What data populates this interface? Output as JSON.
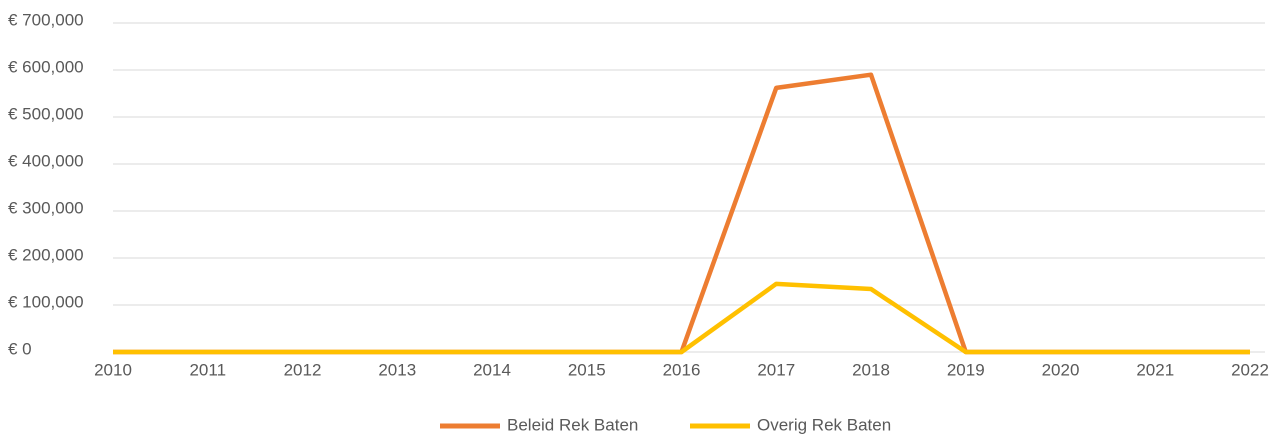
{
  "chart_data": {
    "type": "line",
    "categories": [
      "2010",
      "2011",
      "2012",
      "2013",
      "2014",
      "2015",
      "2016",
      "2017",
      "2018",
      "2019",
      "2020",
      "2021",
      "2022"
    ],
    "series": [
      {
        "name": "Beleid Rek Baten",
        "color": "#ed7d31",
        "values": [
          0,
          0,
          0,
          0,
          0,
          0,
          0,
          562000,
          590000,
          0,
          0,
          0,
          0
        ]
      },
      {
        "name": "Overig Rek Baten",
        "color": "#ffc000",
        "values": [
          0,
          0,
          0,
          0,
          0,
          0,
          0,
          145000,
          134000,
          0,
          0,
          0,
          0
        ]
      }
    ],
    "ylim": [
      0,
      700000
    ],
    "yticks": [
      {
        "value": 0,
        "label": "€ 0"
      },
      {
        "value": 100000,
        "label": "€ 100,000"
      },
      {
        "value": 200000,
        "label": "€ 200,000"
      },
      {
        "value": 300000,
        "label": "€ 300,000"
      },
      {
        "value": 400000,
        "label": "€ 400,000"
      },
      {
        "value": 500000,
        "label": "€ 500,000"
      },
      {
        "value": 600000,
        "label": "€ 600,000"
      },
      {
        "value": 700000,
        "label": "€ 700,000"
      }
    ],
    "grid": true,
    "legend": "bottom"
  }
}
